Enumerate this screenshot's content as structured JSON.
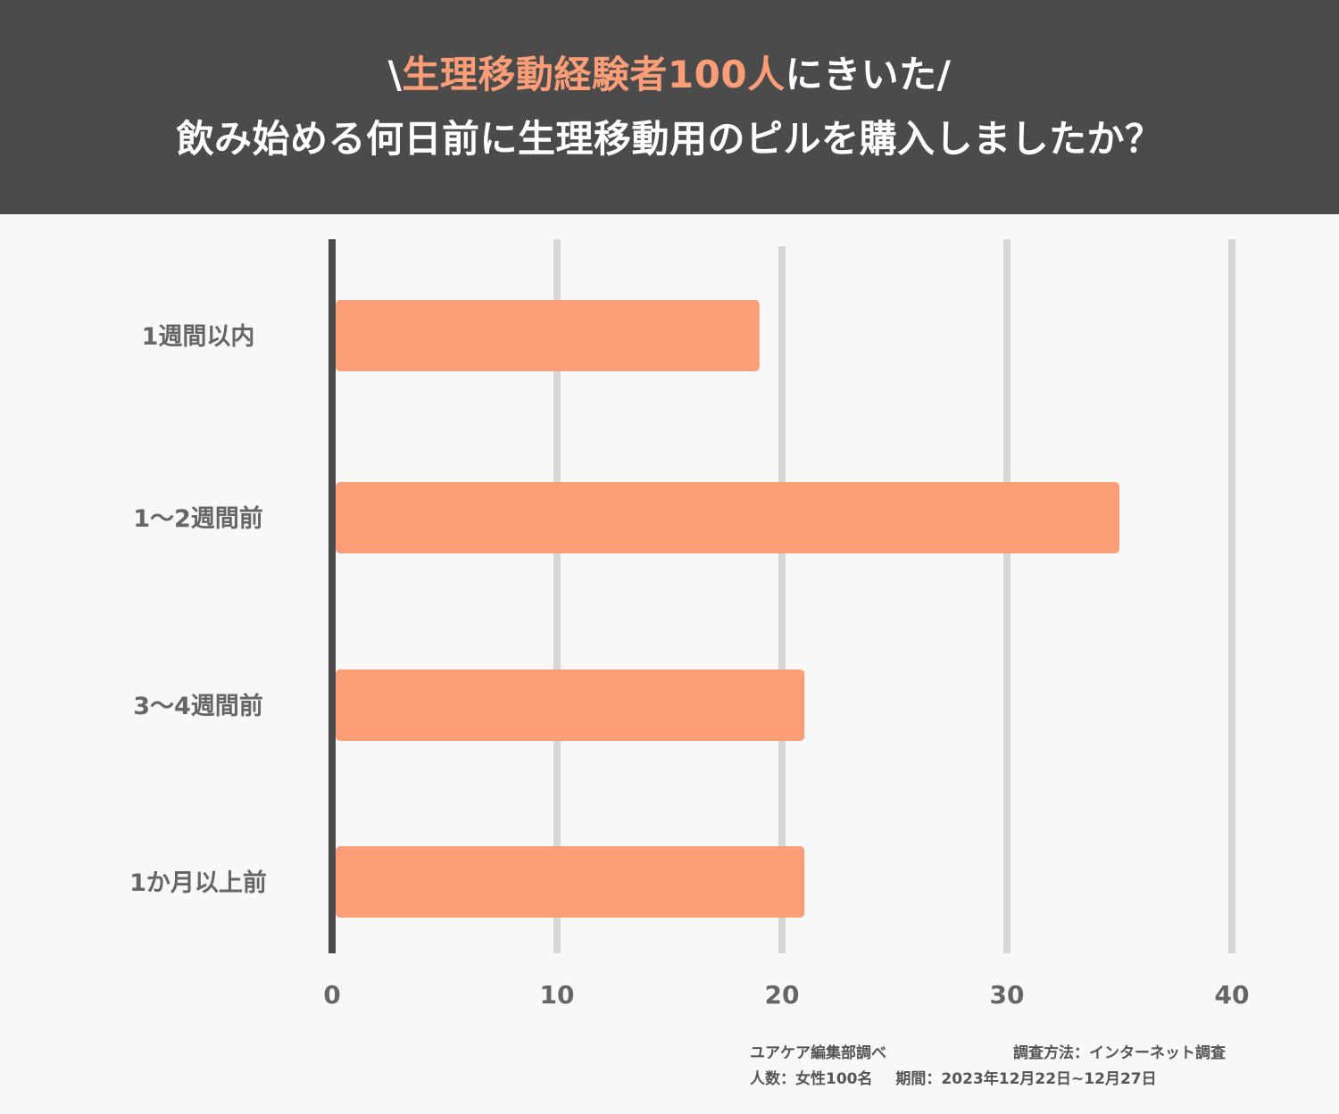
{
  "header": {
    "line1_prefix": "\\",
    "line1_accent": "生理移動経験者100人",
    "line1_suffix": "にきいた/",
    "line2": "飲み始める何日前に生理移動用のピルを購入しましたか？"
  },
  "colors": {
    "header_bg": "#4b4b4b",
    "accent": "#fb9d76",
    "bar": "#fb9d76",
    "grid": "#d6d6d6",
    "axis": "#4b4b4b",
    "text": "#666666"
  },
  "chart_data": {
    "type": "bar",
    "orientation": "horizontal",
    "categories": [
      "1週間以内",
      "1〜2週間前",
      "3〜4週間前",
      "1か月以上前"
    ],
    "values": [
      19,
      35,
      21,
      21
    ],
    "xlim": [
      0,
      40
    ],
    "xticks": [
      "0",
      "10",
      "20",
      "30",
      "40"
    ],
    "grid": true,
    "legend": "none"
  },
  "footer": {
    "source": "ユアケア編集部調べ",
    "method": "調査方法：インターネット調査",
    "respondents": "人数：女性100名",
    "period": "期間：2023年12月22日~12月27日"
  }
}
